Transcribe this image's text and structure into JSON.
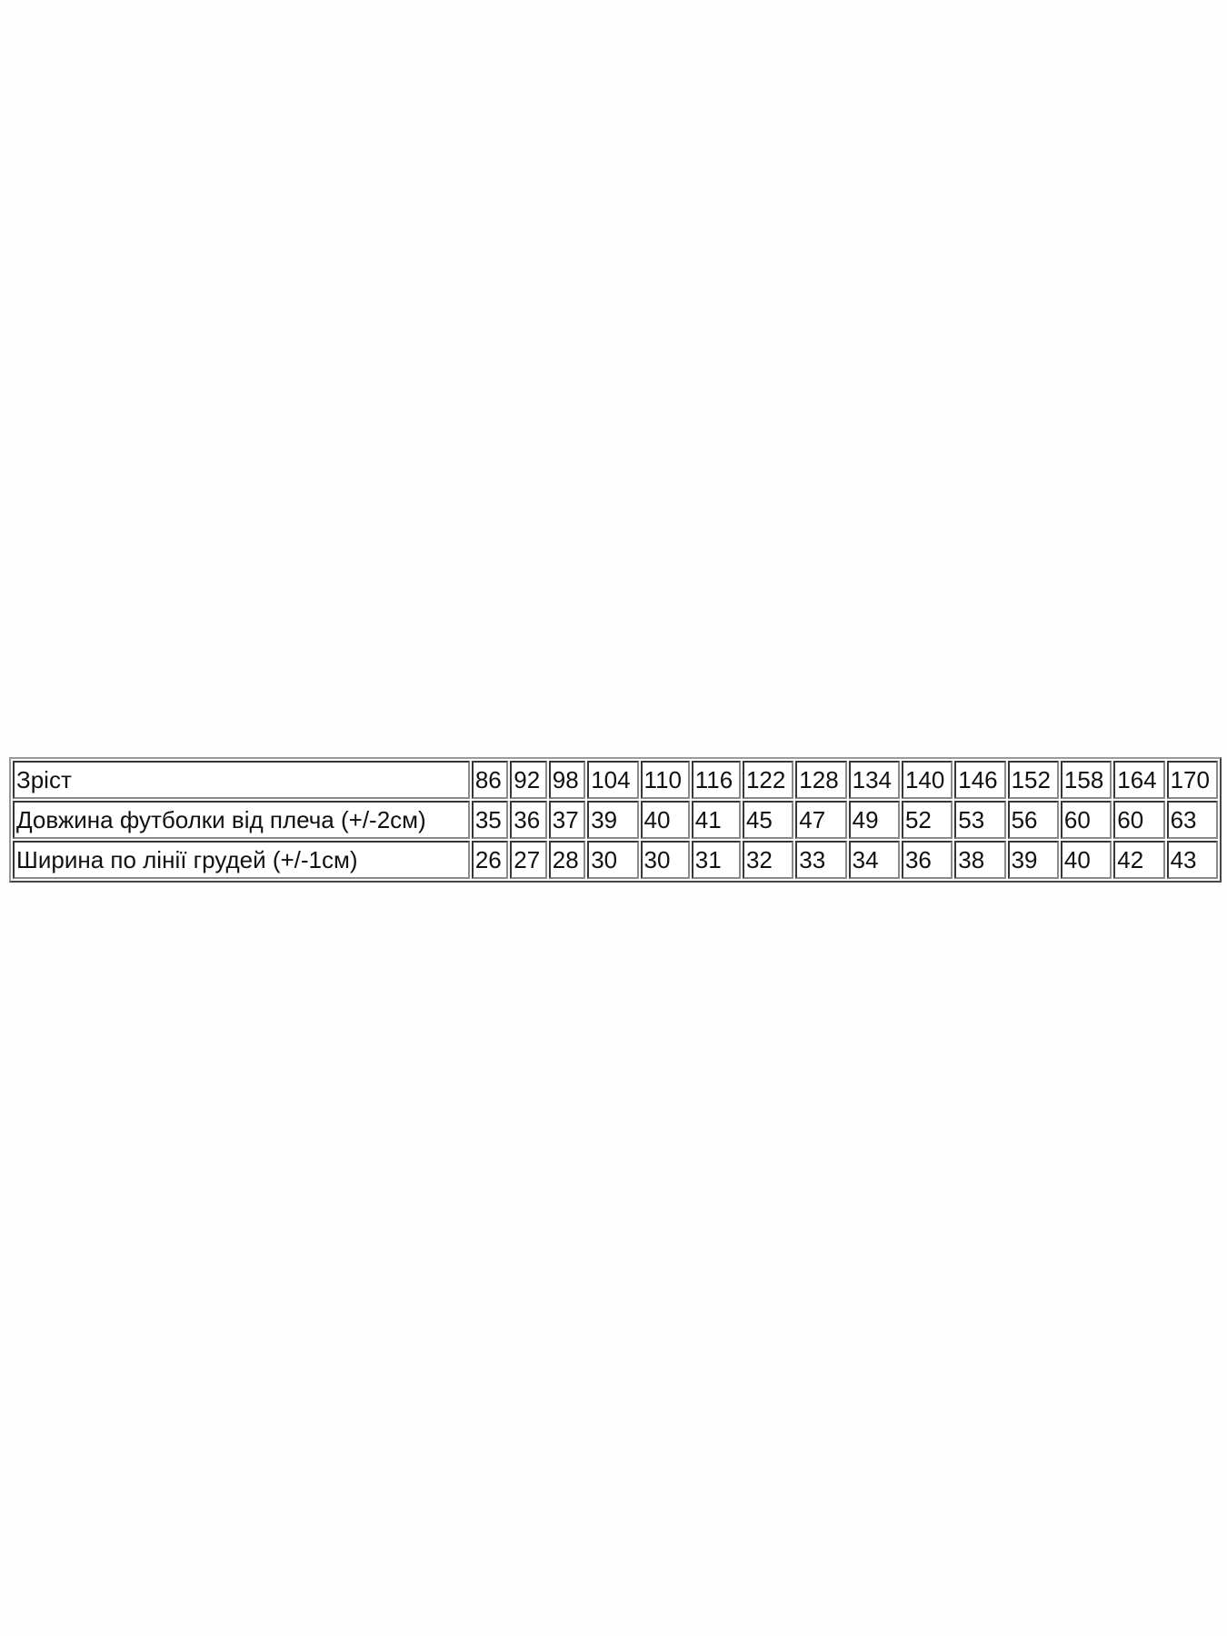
{
  "table": {
    "rows": [
      {
        "label": "Зріст",
        "values": [
          "86",
          "92",
          "98",
          "104",
          "110",
          "116",
          "122",
          "128",
          "134",
          "140",
          "146",
          "152",
          "158",
          "164",
          "170"
        ]
      },
      {
        "label": "Довжина футболки від плеча (+/-2см)",
        "values": [
          "35",
          "36",
          "37",
          "39",
          "40",
          "41",
          "45",
          "47",
          "49",
          "52",
          "53",
          "56",
          "60",
          "60",
          "63"
        ]
      },
      {
        "label": "Ширина по лінії грудей (+/-1см)",
        "values": [
          "26",
          "27",
          "28",
          "30",
          "30",
          "31",
          "32",
          "33",
          "34",
          "36",
          "38",
          "39",
          "40",
          "42",
          "43"
        ]
      }
    ]
  }
}
